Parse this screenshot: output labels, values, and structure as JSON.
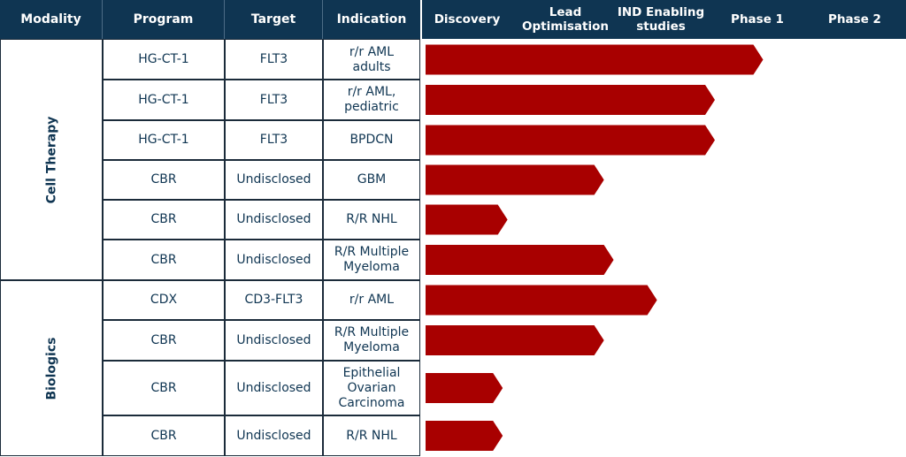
{
  "header": {
    "modality": "Modality",
    "program": "Program",
    "target": "Target",
    "indication": "Indication"
  },
  "chart_data": {
    "type": "bar",
    "orientation": "horizontal",
    "stages": [
      "Discovery",
      "Lead Optimisation",
      "IND Enabling studies",
      "Phase 1",
      "Phase 2"
    ],
    "stages_display": [
      "Discovery",
      "Lead\nOptimisation",
      "IND Enabling\nstudies",
      "Phase 1",
      "Phase 2"
    ],
    "bar_color": "#a80000",
    "header_color": "#0f3552",
    "groups": [
      {
        "modality": "Cell Therapy",
        "rows": [
          0,
          1,
          2,
          3,
          4,
          5
        ]
      },
      {
        "modality": "Biologics",
        "rows": [
          6,
          7,
          8,
          9
        ]
      }
    ],
    "rows": [
      {
        "program": "HG-CT-1",
        "target": "FLT3",
        "indication": "r/r AML\nadults",
        "progress": 3.5
      },
      {
        "program": "HG-CT-1",
        "target": "FLT3",
        "indication": "r/r AML,\npediatric",
        "progress": 3.0
      },
      {
        "program": "HG-CT-1",
        "target": "FLT3",
        "indication": "BPDCN",
        "progress": 3.0
      },
      {
        "program": "CBR",
        "target": "Undisclosed",
        "indication": "GBM",
        "progress": 1.85
      },
      {
        "program": "CBR",
        "target": "Undisclosed",
        "indication": "R/R NHL",
        "progress": 0.85
      },
      {
        "program": "CBR",
        "target": "Undisclosed",
        "indication": "R/R Multiple\nMyeloma",
        "progress": 1.95
      },
      {
        "program": "CDX",
        "target": "CD3-FLT3",
        "indication": "r/r AML",
        "progress": 2.4
      },
      {
        "program": "CBR",
        "target": "Undisclosed",
        "indication": "R/R Multiple\nMyeloma",
        "progress": 1.85
      },
      {
        "program": "CBR",
        "target": "Undisclosed",
        "indication": "Epithelial\nOvarian\nCarcinoma",
        "progress": 0.8
      },
      {
        "program": "CBR",
        "target": "Undisclosed",
        "indication": "R/R NHL",
        "progress": 0.8
      }
    ]
  }
}
